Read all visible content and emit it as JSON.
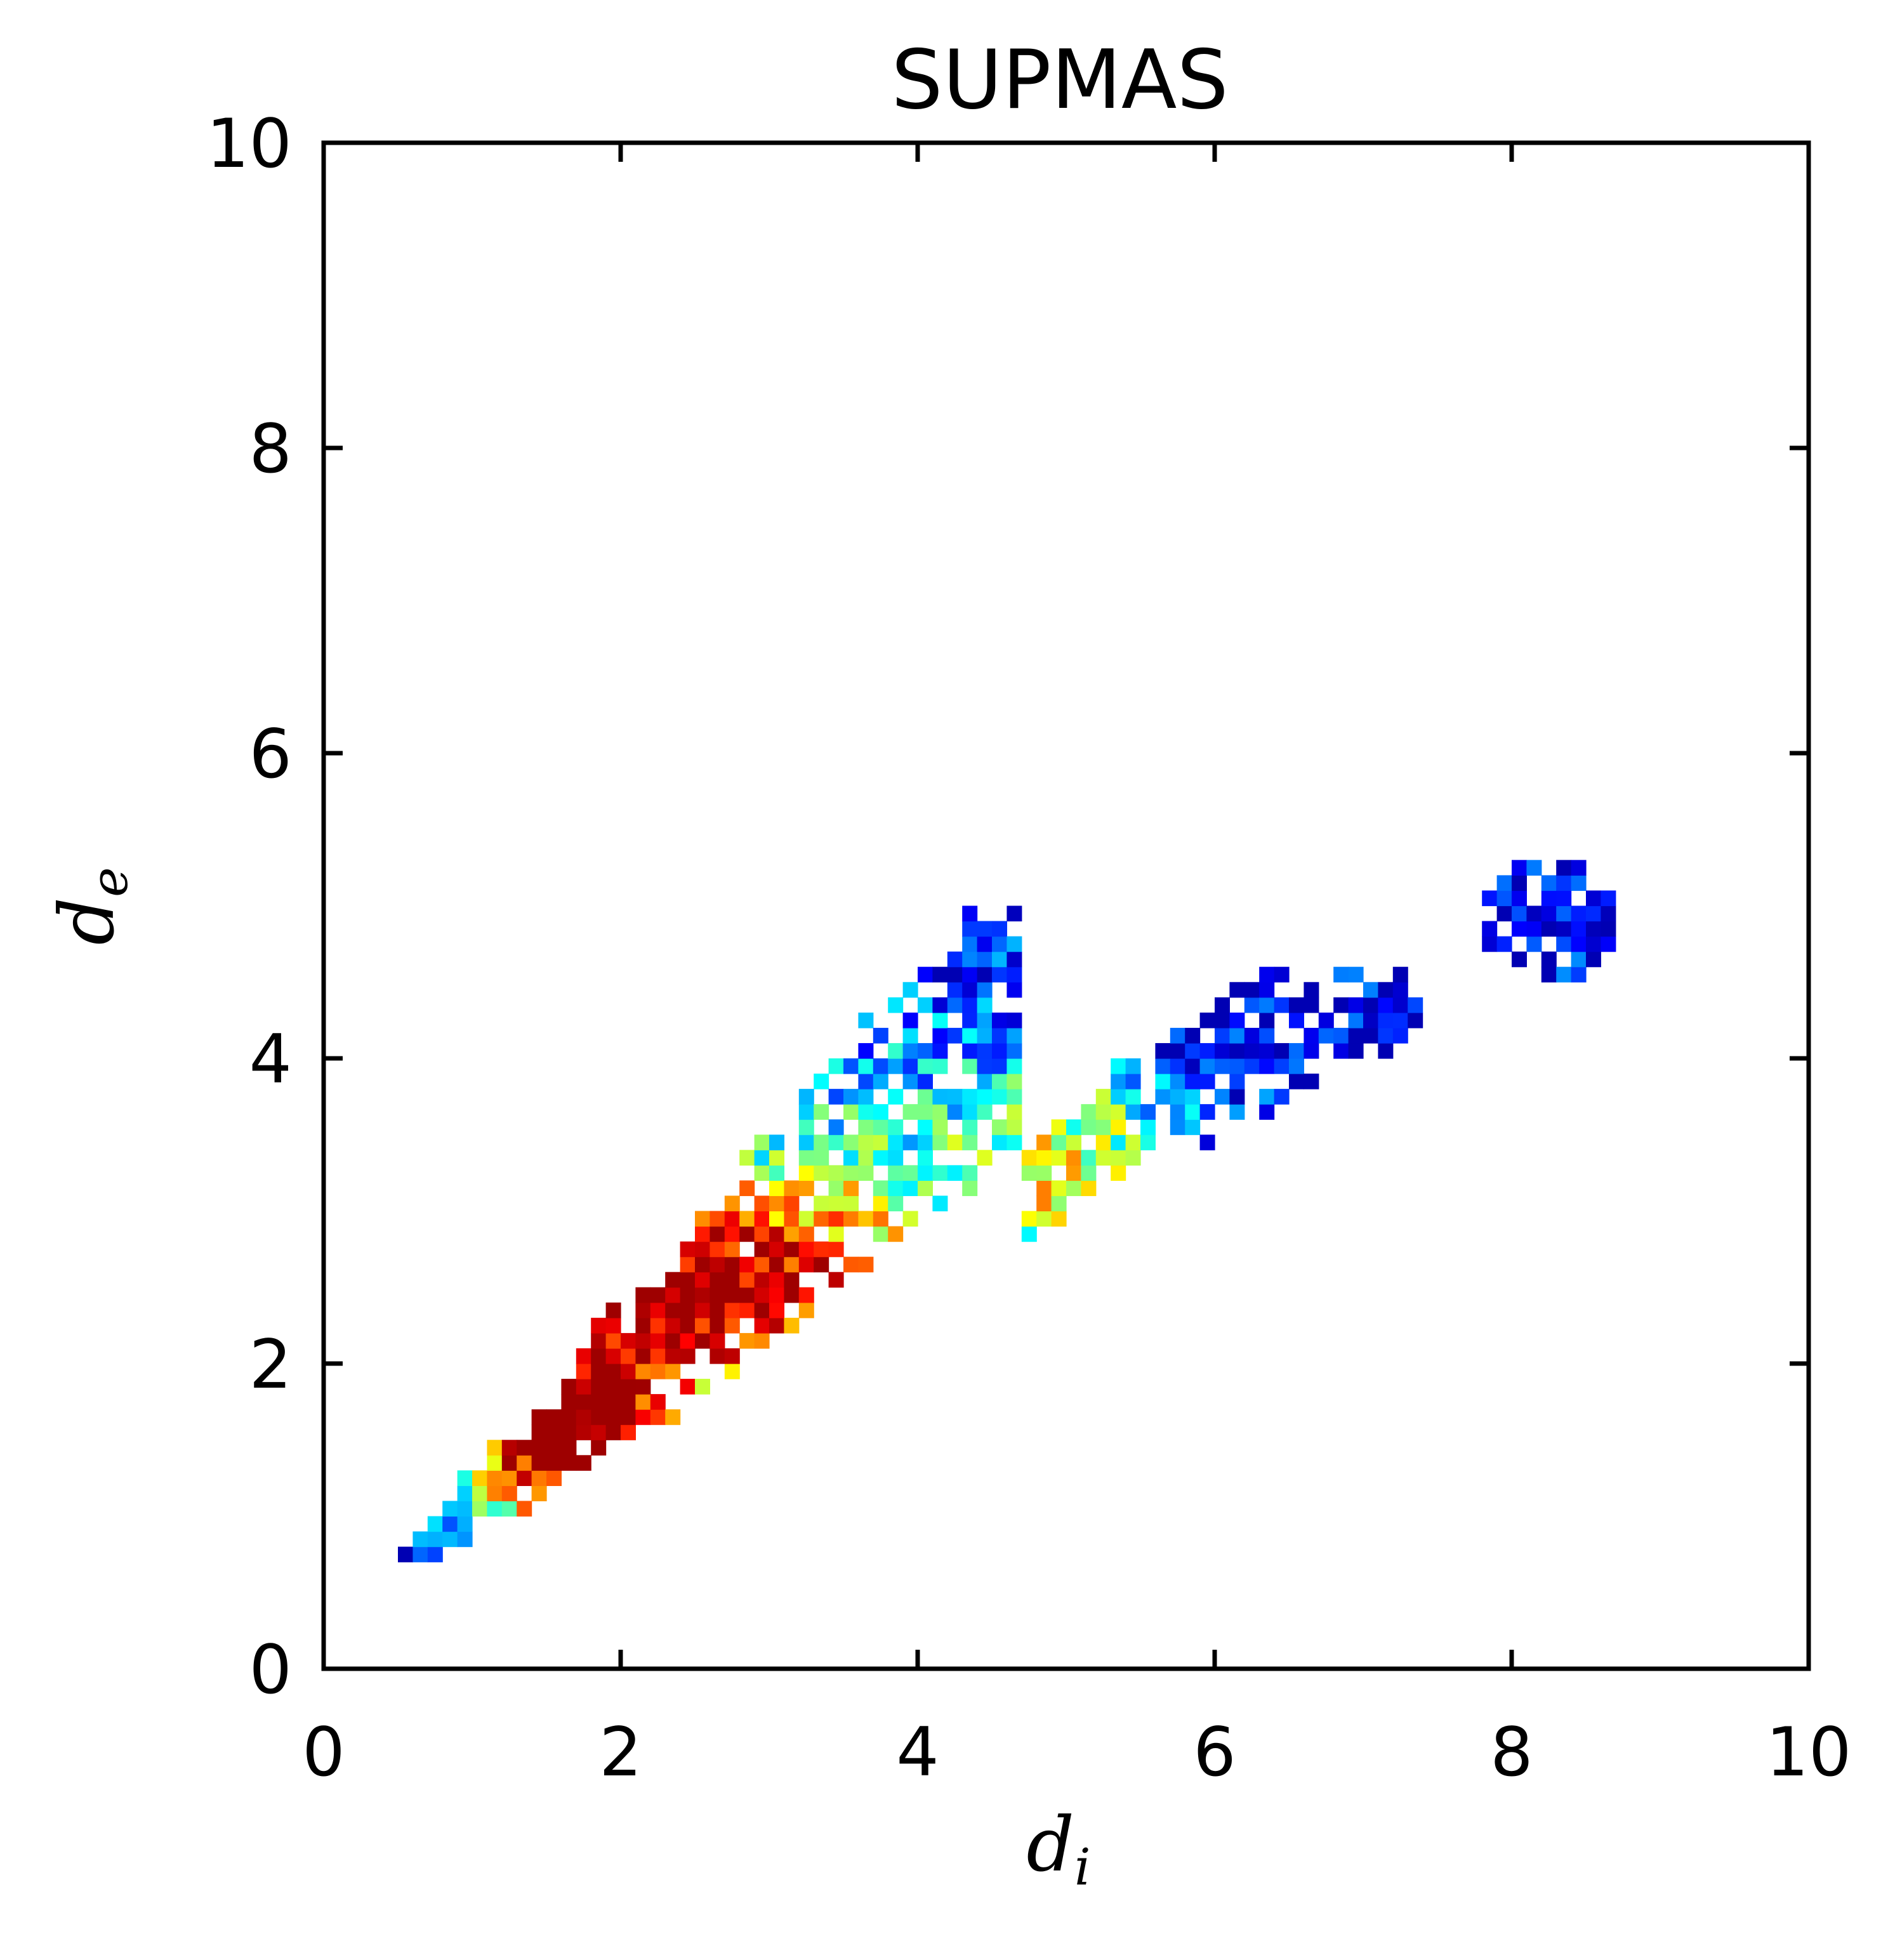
{
  "chart_data": {
    "type": "heatmap",
    "title": "SUPMAS",
    "xlabel": "d",
    "xlabel_sub": "i",
    "ylabel": "d",
    "ylabel_sub": "e",
    "xlim": [
      0,
      10
    ],
    "ylim": [
      0,
      10
    ],
    "xticks": [
      "0",
      "2",
      "4",
      "6",
      "8",
      "10"
    ],
    "yticks": [
      "0",
      "2",
      "4",
      "6",
      "8",
      "10"
    ],
    "bin_size": 0.1,
    "colormap": "jet",
    "grid": false,
    "legend": "none",
    "colors": {
      "axis": "#000000",
      "background": "#ffffff"
    }
  }
}
